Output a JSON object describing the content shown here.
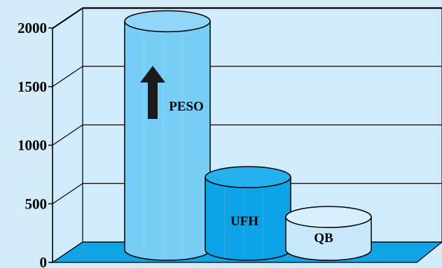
{
  "chart_data": {
    "type": "bar",
    "style": "3d-cylinder",
    "categories": [
      "PESO",
      "UFH",
      "QB"
    ],
    "values": [
      1950,
      620,
      280
    ],
    "ylim": [
      0,
      2000
    ],
    "yticks": [
      "0",
      "500",
      "1000",
      "1500",
      "2000"
    ],
    "grid": true,
    "legend": "none",
    "annotation": {
      "text": "PESO",
      "symbol": "up-arrow",
      "target": "PESO"
    },
    "colors": {
      "background": "#d3ecf8",
      "wall": "#d0ecfa",
      "floor": "#12a4e6",
      "bars": [
        "#78cdf6",
        "#0ea3e6",
        "#c6e8fa"
      ],
      "bar_tops": [
        "#8fd6f8",
        "#24b0ee",
        "#d8f0fb"
      ],
      "arrow": "#1a1a1a"
    }
  }
}
